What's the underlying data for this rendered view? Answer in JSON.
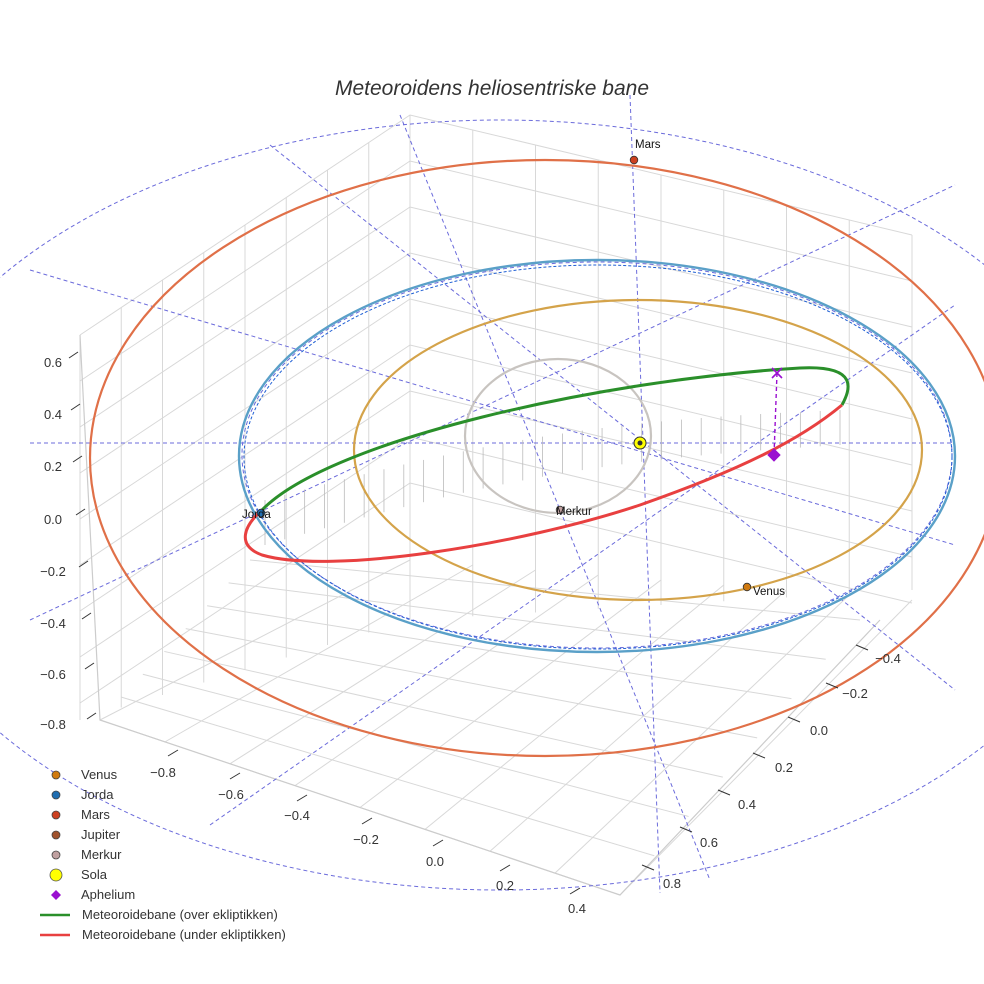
{
  "chart_data": {
    "type": "3d-line",
    "title": "Meteoroidens heliosentriske bane",
    "colors": {
      "venus_orbit": "#d4a34a",
      "earth_orbit": "#5aa0c8",
      "earth_orbit_inner": "#1f5fd4",
      "mars_orbit": "#e07048",
      "mercury_orbit": "#c8c4c0",
      "above": "#2a8f2a",
      "below": "#e84040",
      "aphelion": "#9a10d0",
      "sun": "#ffff00",
      "venus": "#d07a10",
      "earth": "#1f6db0",
      "mars": "#cc4020",
      "jupiter": "#a0522d",
      "mercury": "#c0a0a0",
      "grid": "#d8d8d8",
      "ecliptic_guides": "#6b6bdb"
    },
    "axes": {
      "x": {
        "ticks": [
          "−0.8",
          "−0.6",
          "−0.4",
          "−0.2",
          "0.0",
          "0.2",
          "0.4"
        ]
      },
      "y": {
        "ticks": [
          "−0.4",
          "−0.2",
          "0.0",
          "0.2",
          "0.4",
          "0.6",
          "0.8"
        ]
      },
      "z": {
        "ticks": [
          "0.6",
          "0.4",
          "0.2",
          "0.0",
          "−0.2",
          "−0.4",
          "−0.6",
          "−0.8"
        ]
      }
    },
    "bodies": [
      {
        "name": "Mars",
        "label": "Mars"
      },
      {
        "name": "Jorda",
        "label": "Jorda"
      },
      {
        "name": "Merkur",
        "label": "Merkur"
      },
      {
        "name": "Venus",
        "label": "Venus"
      }
    ],
    "legend": [
      {
        "label": "Venus",
        "kind": "dot",
        "color": "#d07a10"
      },
      {
        "label": "Jorda",
        "kind": "dot",
        "color": "#1f6db0"
      },
      {
        "label": "Mars",
        "kind": "dot",
        "color": "#cc4020"
      },
      {
        "label": "Jupiter",
        "kind": "dot",
        "color": "#a0522d"
      },
      {
        "label": "Merkur",
        "kind": "dot",
        "color": "#c0a0a0"
      },
      {
        "label": "Sola",
        "kind": "sun",
        "color": "#ffff00"
      },
      {
        "label": "Aphelium",
        "kind": "diamond",
        "color": "#9a10d0"
      },
      {
        "label": "Meteoroidebane (over ekliptikken)",
        "kind": "line",
        "color": "#2a8f2a"
      },
      {
        "label": "Meteoroidebane (under ekliptikken)",
        "kind": "line",
        "color": "#e84040"
      }
    ],
    "legend_position": "bottom-left",
    "grid": true
  }
}
